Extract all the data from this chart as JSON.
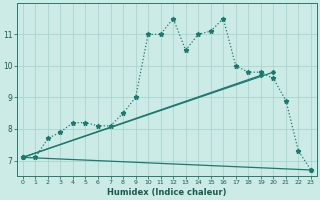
{
  "xlabel": "Humidex (Indice chaleur)",
  "bg_color": "#cceae6",
  "grid_color": "#aad4d0",
  "line_color": "#1a7a6e",
  "xlim": [
    -0.5,
    23.5
  ],
  "ylim": [
    6.5,
    12.0
  ],
  "xticks": [
    0,
    1,
    2,
    3,
    4,
    5,
    6,
    7,
    8,
    9,
    10,
    11,
    12,
    13,
    14,
    15,
    16,
    17,
    18,
    19,
    20,
    21,
    22,
    23
  ],
  "yticks": [
    7,
    8,
    9,
    10,
    11
  ],
  "dotted_x": [
    0,
    1,
    2,
    3,
    4,
    5,
    6,
    7,
    8,
    9,
    10,
    11,
    12,
    13,
    14,
    15,
    16,
    17,
    18,
    19,
    20,
    21,
    22,
    23
  ],
  "dotted_y": [
    7.1,
    7.1,
    7.7,
    7.9,
    8.2,
    8.2,
    8.1,
    8.1,
    8.5,
    9.0,
    11.0,
    11.0,
    11.5,
    10.5,
    11.0,
    11.1,
    11.5,
    10.0,
    9.8,
    9.8,
    9.6,
    8.9,
    7.3,
    6.7
  ],
  "straight_lines": [
    {
      "x": [
        0,
        19
      ],
      "y": [
        7.1,
        9.7
      ]
    },
    {
      "x": [
        0,
        20
      ],
      "y": [
        7.1,
        9.8
      ]
    },
    {
      "x": [
        0,
        23
      ],
      "y": [
        7.1,
        6.7
      ]
    }
  ]
}
